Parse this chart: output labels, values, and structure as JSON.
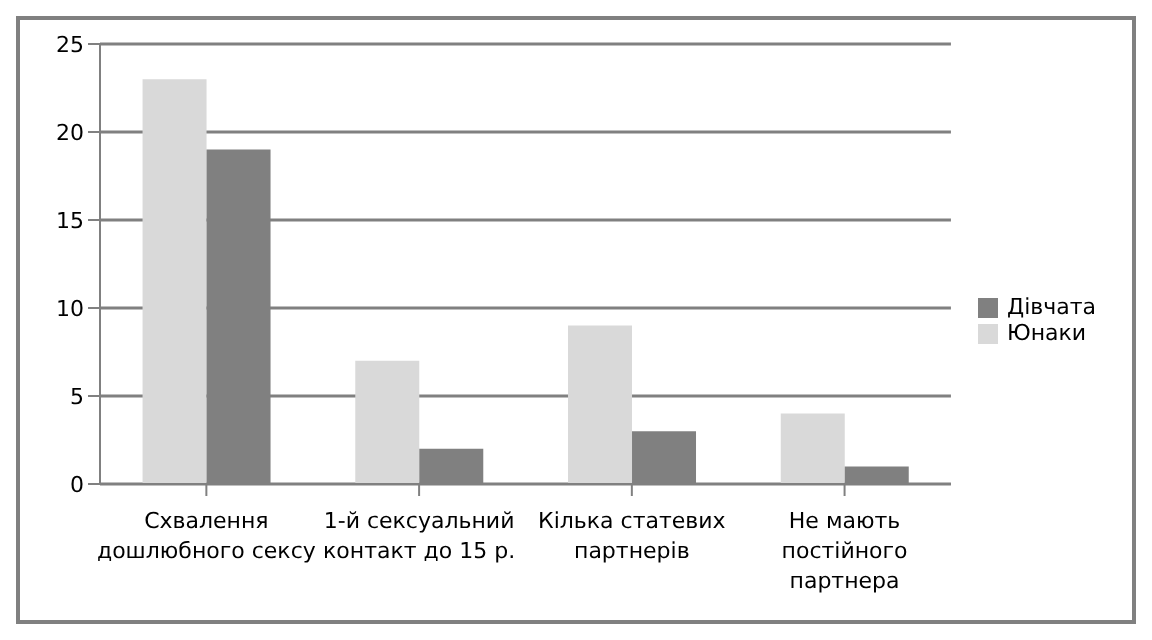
{
  "chart_data": {
    "type": "bar",
    "categories": [
      "Схвалення дошлюбного сексу",
      "1-й сексуальний контакт до 15 р.",
      "Кілька статевих партнерів",
      "Не мають постійного партнера"
    ],
    "series": [
      {
        "name": "Юнаки",
        "color": "#d9d9d9",
        "values": [
          23,
          7,
          9,
          4
        ]
      },
      {
        "name": "Дівчата",
        "color": "#808080",
        "values": [
          19,
          2,
          3,
          1
        ]
      }
    ],
    "ylim": [
      0,
      25
    ],
    "yticks": [
      0,
      5,
      10,
      15,
      20,
      25
    ],
    "grid": "y",
    "legend": "right"
  }
}
